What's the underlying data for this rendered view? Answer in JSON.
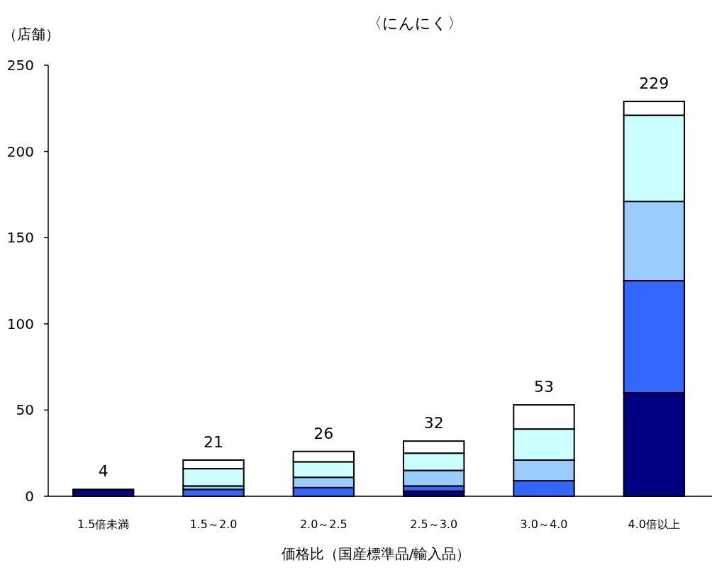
{
  "chart_data": {
    "type": "bar",
    "title": "〈にんにく〉",
    "ylabel": "（店舗）",
    "xlabel": "価格比（国産標準品/輸入品）",
    "categories": [
      "1.5倍未満",
      "1.5～2.0",
      "2.0～2.5",
      "2.5～3.0",
      "3.0～4.0",
      "4.0倍以上"
    ],
    "stacked": true,
    "series": [
      {
        "color": "#000080",
        "values": [
          4,
          null,
          0,
          3,
          0,
          60
        ]
      },
      {
        "color": "#3366ff",
        "values": [
          0,
          4,
          5,
          3,
          9,
          65
        ]
      },
      {
        "color": "#99ccff",
        "values": [
          0,
          2,
          6,
          9,
          12,
          46
        ]
      },
      {
        "color": "#ccffff",
        "values": [
          0,
          10,
          9,
          10,
          18,
          50
        ]
      },
      {
        "color": "#ffffff",
        "values": [
          0,
          5,
          6,
          7,
          14,
          8
        ]
      }
    ],
    "totals": [
      "4",
      "21",
      "26",
      "32",
      "53",
      "229"
    ],
    "ylim": [
      0,
      250
    ],
    "yticks": [
      0,
      50,
      100,
      150,
      200,
      250
    ]
  }
}
